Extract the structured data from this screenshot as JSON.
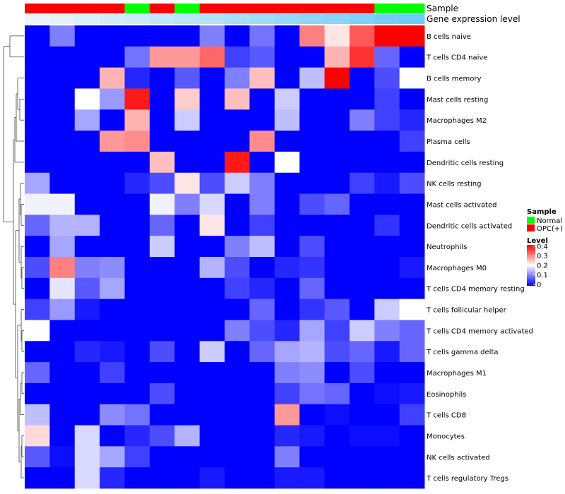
{
  "chart_data": {
    "type": "heatmap",
    "annotation_rows": [
      {
        "name": "Sample",
        "values": [
          "OPC(+)",
          "OPC(+)",
          "OPC(+)",
          "OPC(+)",
          "Normal",
          "OPC(+)",
          "Normal",
          "OPC(+)",
          "OPC(+)",
          "OPC(+)",
          "OPC(+)",
          "OPC(+)",
          "OPC(+)",
          "OPC(+)",
          "Normal",
          "Normal"
        ]
      },
      {
        "name": "Gene expression level",
        "values": [
          0.05,
          0.1,
          0.15,
          0.2,
          0.25,
          0.3,
          0.35,
          0.4,
          0.45,
          0.5,
          0.55,
          0.6,
          0.65,
          0.7,
          0.75,
          0.8
        ]
      }
    ],
    "rows": [
      {
        "name": "B cells naive",
        "values": [
          0,
          0.1,
          0,
          0,
          0,
          0,
          0,
          0.1,
          0,
          0.09,
          0,
          0.3,
          0.22,
          0.33,
          0.4,
          0.4
        ]
      },
      {
        "name": "T cells CD4 naive",
        "values": [
          0,
          0,
          0,
          0,
          0.09,
          0.28,
          0.28,
          0.32,
          0.05,
          0.07,
          0,
          0,
          0.26,
          0.36,
          0.08,
          0
        ]
      },
      {
        "name": "B cells memory",
        "values": [
          0,
          0,
          0,
          0.26,
          0.03,
          0,
          0.07,
          0,
          0.1,
          0.25,
          0,
          0.15,
          0.4,
          0,
          0.06,
          0.2
        ]
      },
      {
        "name": "Mast cells resting",
        "values": [
          0,
          0,
          0.2,
          0.12,
          0.38,
          0,
          0.24,
          0,
          0.25,
          0,
          0.16,
          0,
          0,
          0,
          0.05,
          0
        ]
      },
      {
        "name": "Macrophages M2",
        "values": [
          0,
          0,
          0.13,
          0,
          0.26,
          0,
          0.16,
          0,
          0,
          0,
          0.15,
          0,
          0,
          0.1,
          0.05,
          0.03
        ]
      },
      {
        "name": "Plasma cells",
        "values": [
          0,
          0,
          0,
          0.28,
          0.29,
          0,
          0,
          0,
          0,
          0.29,
          0,
          0,
          0,
          0,
          0,
          0.05
        ]
      },
      {
        "name": "Dendritic cells resting",
        "values": [
          0,
          0,
          0,
          0,
          0,
          0.25,
          0,
          0,
          0.38,
          0,
          0.2,
          0,
          0,
          0,
          0,
          0
        ]
      },
      {
        "name": "NK cells resting",
        "values": [
          0.13,
          0,
          0,
          0,
          0.03,
          0.06,
          0.22,
          0.06,
          0.16,
          0.1,
          0,
          0,
          0,
          0.05,
          0.02,
          0.06
        ]
      },
      {
        "name": "Mast cells activated",
        "values": [
          0.19,
          0.19,
          0,
          0,
          0,
          0.19,
          0.1,
          0.17,
          0,
          0.1,
          0,
          0.06,
          0.08,
          0,
          0,
          0
        ]
      },
      {
        "name": "Dendritic cells activated",
        "values": [
          0.08,
          0.14,
          0.14,
          0,
          0,
          0.08,
          0,
          0.22,
          0,
          0.05,
          0,
          0,
          0,
          0,
          0.04,
          0
        ]
      },
      {
        "name": "Neutrophils",
        "values": [
          0,
          0.13,
          0,
          0,
          0,
          0.16,
          0,
          0,
          0.1,
          0.15,
          0,
          0.06,
          0,
          0,
          0,
          0
        ]
      },
      {
        "name": "Macrophages M0",
        "values": [
          0.06,
          0.3,
          0.1,
          0.11,
          0,
          0,
          0,
          0.14,
          0.06,
          0,
          0.03,
          0.04,
          0,
          0,
          0,
          0.02
        ]
      },
      {
        "name": "T cells CD4 memory resting",
        "values": [
          0,
          0.18,
          0.07,
          0.13,
          0,
          0,
          0,
          0,
          0.05,
          0.03,
          0,
          0.08,
          0,
          0,
          0,
          0
        ]
      },
      {
        "name": "T cells follicular helper",
        "values": [
          0.05,
          0.12,
          0.02,
          0,
          0,
          0,
          0,
          0,
          0,
          0.08,
          0,
          0.04,
          0.07,
          0,
          0.16,
          0.2
        ]
      },
      {
        "name": "T cells CD4 memory activated",
        "values": [
          0.2,
          0,
          0,
          0,
          0,
          0,
          0,
          0,
          0.1,
          0.06,
          0.03,
          0.13,
          0.05,
          0.16,
          0.1,
          0.08
        ]
      },
      {
        "name": "T cells gamma delta",
        "values": [
          0,
          0,
          0.03,
          0.02,
          0,
          0.06,
          0,
          0.16,
          0,
          0.08,
          0.13,
          0.14,
          0.06,
          0.08,
          0.02,
          0.08
        ]
      },
      {
        "name": "Macrophages M1",
        "values": [
          0.08,
          0,
          0,
          0.05,
          0,
          0,
          0,
          0,
          0,
          0,
          0.1,
          0.11,
          0,
          0.06,
          0,
          0
        ]
      },
      {
        "name": "Eosinophils",
        "values": [
          0,
          0,
          0,
          0,
          0,
          0.06,
          0,
          0,
          0,
          0,
          0.05,
          0.09,
          0.08,
          0,
          0.01,
          0.02
        ]
      },
      {
        "name": "T cells CD8",
        "values": [
          0.15,
          0,
          0,
          0.11,
          0.09,
          0,
          0,
          0,
          0,
          0,
          0.28,
          0,
          0.01,
          0,
          0,
          0.05
        ]
      },
      {
        "name": "Monocytes",
        "values": [
          0.23,
          0,
          0.17,
          0,
          0.03,
          0.06,
          0.14,
          0,
          0,
          0,
          0.03,
          0.02,
          0,
          0.01,
          0.01,
          0
        ]
      },
      {
        "name": "NK cells activated",
        "values": [
          0.07,
          0.01,
          0.17,
          0.13,
          0.05,
          0,
          0,
          0,
          0,
          0,
          0.1,
          0,
          0,
          0,
          0,
          0
        ]
      },
      {
        "name": "T cells regulatory  Tregs",
        "values": [
          0,
          0,
          0.17,
          0.03,
          0,
          0,
          0,
          0.02,
          0,
          0,
          0.02,
          0.02,
          0,
          0,
          0,
          0
        ]
      }
    ],
    "scale": {
      "min": 0,
      "max": 0.4,
      "colors": [
        "#0000ff",
        "#ffffff",
        "#ff0000"
      ]
    },
    "legend": {
      "sample_title": "Sample",
      "sample_entries": [
        {
          "label": "Normal",
          "color": "#00ff00"
        },
        {
          "label": "OPC(+)",
          "color": "#ff0000"
        }
      ],
      "level_title": "Level",
      "level_ticks": [
        "0.4",
        "0.3",
        "0.2",
        "0.1",
        "0"
      ],
      "placement": "right"
    },
    "gene_expression_colors": [
      "#eaf6fd",
      "#6ecbf6"
    ],
    "dendrogram": "left"
  }
}
